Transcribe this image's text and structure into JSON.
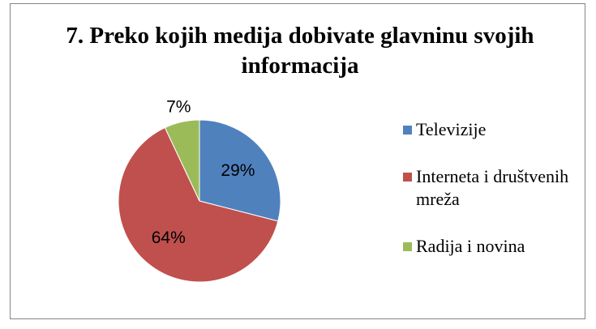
{
  "chart_data": {
    "type": "pie",
    "title": "7. Preko kojih medija dobivate glavninu svojih informacija",
    "categories": [
      "Televizije",
      "Interneta i društvenih mreža",
      "Radija i novina"
    ],
    "values": [
      29,
      64,
      7
    ],
    "value_labels": [
      "29%",
      "64%",
      "7%"
    ],
    "colors": [
      "#4f81bd",
      "#c0504d",
      "#9bbb59"
    ],
    "legend": "right"
  }
}
